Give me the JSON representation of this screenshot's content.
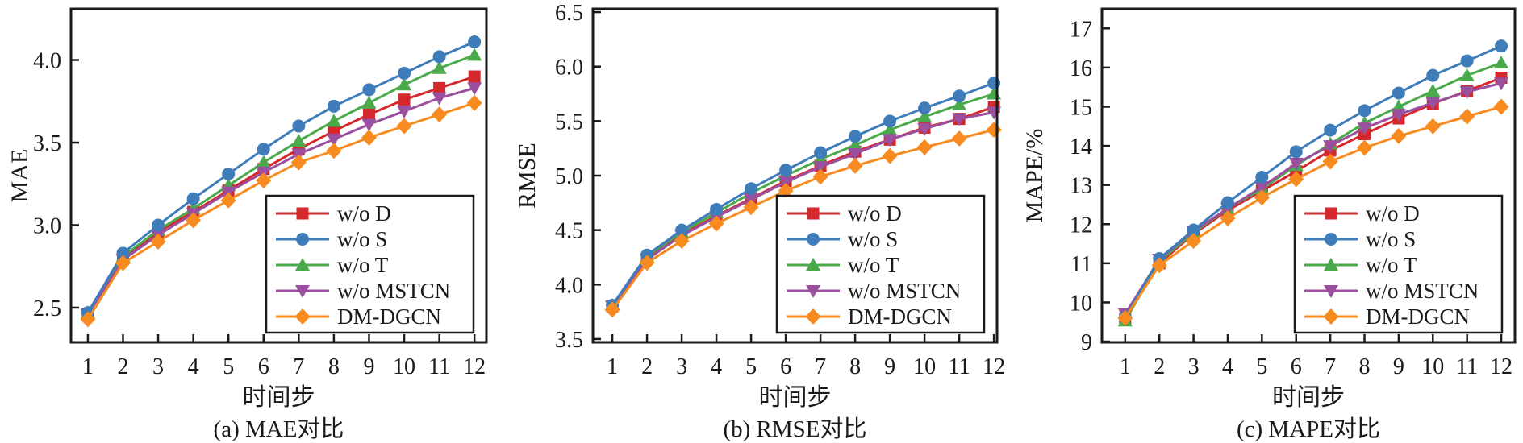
{
  "page": {
    "background": "#ffffff",
    "axis_color": "#1a1a1a",
    "text_color": "#1a1a1a"
  },
  "legend": {
    "position": "lower right",
    "items": [
      {
        "label": "w/o D",
        "color": "#d5282c",
        "marker": "square"
      },
      {
        "label": "w/o S",
        "color": "#3e7cba",
        "marker": "circle"
      },
      {
        "label": "w/o T",
        "color": "#4aa94a",
        "marker": "triangle-up"
      },
      {
        "label": "w/o MSTCN",
        "color": "#9b4f9f",
        "marker": "triangle-down"
      },
      {
        "label": "DM-DGCN",
        "color": "#f78b1f",
        "marker": "diamond"
      }
    ]
  },
  "chart_data": [
    {
      "type": "line",
      "caption": "(a) MAE对比",
      "xlabel": "时间步",
      "ylabel": "MAE",
      "x": [
        1,
        2,
        3,
        4,
        5,
        6,
        7,
        8,
        9,
        10,
        11,
        12
      ],
      "xtick_labels": [
        "1",
        "2",
        "3",
        "4",
        "5",
        "6",
        "7",
        "8",
        "9",
        "10",
        "11",
        "12"
      ],
      "xlim": [
        0.52,
        12.34
      ],
      "ylim": [
        2.29,
        4.31
      ],
      "yticks": [
        2.5,
        3.0,
        3.5,
        4.0
      ],
      "ytick_labels": [
        "2.5",
        "3.0",
        "3.5",
        "4.0"
      ],
      "grid": false,
      "legend_position": "lower right",
      "series": [
        {
          "name": "w/o D",
          "color": "#d5282c",
          "marker": "square",
          "values": [
            2.46,
            2.8,
            2.96,
            3.08,
            3.21,
            3.34,
            3.46,
            3.57,
            3.67,
            3.76,
            3.83,
            3.9
          ]
        },
        {
          "name": "w/o S",
          "color": "#3e7cba",
          "marker": "circle",
          "values": [
            2.47,
            2.83,
            3.0,
            3.16,
            3.31,
            3.46,
            3.6,
            3.72,
            3.82,
            3.92,
            4.02,
            4.11
          ]
        },
        {
          "name": "w/o T",
          "color": "#4aa94a",
          "marker": "triangle-up",
          "values": [
            2.47,
            2.81,
            2.97,
            3.1,
            3.24,
            3.38,
            3.51,
            3.63,
            3.74,
            3.85,
            3.95,
            4.03
          ]
        },
        {
          "name": "w/o MSTCN",
          "color": "#9b4f9f",
          "marker": "triangle-down",
          "values": [
            2.46,
            2.79,
            2.94,
            3.07,
            3.2,
            3.32,
            3.43,
            3.52,
            3.61,
            3.69,
            3.77,
            3.83
          ]
        },
        {
          "name": "DM-DGCN",
          "color": "#f78b1f",
          "marker": "diamond",
          "values": [
            2.43,
            2.77,
            2.9,
            3.03,
            3.15,
            3.27,
            3.38,
            3.45,
            3.53,
            3.6,
            3.67,
            3.74
          ]
        }
      ]
    },
    {
      "type": "line",
      "caption": "(b) RMSE对比",
      "xlabel": "时间步",
      "ylabel": "RMSE",
      "x": [
        1,
        2,
        3,
        4,
        5,
        6,
        7,
        8,
        9,
        10,
        11,
        12
      ],
      "xtick_labels": [
        "1",
        "2",
        "3",
        "4",
        "5",
        "6",
        "7",
        "8",
        "9",
        "10",
        "11",
        "12"
      ],
      "xlim": [
        0.44,
        12.09
      ],
      "ylim": [
        3.47,
        6.53
      ],
      "yticks": [
        3.5,
        4.0,
        4.5,
        5.0,
        5.5,
        6.0,
        6.5
      ],
      "ytick_labels": [
        "3.5",
        "4.0",
        "4.5",
        "5.0",
        "5.5",
        "6.0",
        "6.5"
      ],
      "grid": false,
      "legend_position": "lower right",
      "series": [
        {
          "name": "w/o D",
          "color": "#d5282c",
          "marker": "square",
          "values": [
            3.8,
            4.24,
            4.46,
            4.63,
            4.79,
            4.95,
            5.09,
            5.22,
            5.33,
            5.44,
            5.52,
            5.63
          ]
        },
        {
          "name": "w/o S",
          "color": "#3e7cba",
          "marker": "circle",
          "values": [
            3.81,
            4.27,
            4.5,
            4.69,
            4.88,
            5.05,
            5.21,
            5.36,
            5.5,
            5.62,
            5.73,
            5.85
          ]
        },
        {
          "name": "w/o T",
          "color": "#4aa94a",
          "marker": "triangle-up",
          "values": [
            3.81,
            4.26,
            4.48,
            4.66,
            4.84,
            5.0,
            5.15,
            5.28,
            5.42,
            5.54,
            5.65,
            5.75
          ]
        },
        {
          "name": "w/o MSTCN",
          "color": "#9b4f9f",
          "marker": "triangle-down",
          "values": [
            3.8,
            4.23,
            4.45,
            4.62,
            4.78,
            4.94,
            5.08,
            5.2,
            5.33,
            5.43,
            5.52,
            5.58
          ]
        },
        {
          "name": "DM-DGCN",
          "color": "#f78b1f",
          "marker": "diamond",
          "values": [
            3.77,
            4.2,
            4.4,
            4.56,
            4.71,
            4.86,
            4.99,
            5.09,
            5.18,
            5.26,
            5.34,
            5.42
          ]
        }
      ]
    },
    {
      "type": "line",
      "caption": "(c) MAPE对比",
      "xlabel": "时间步",
      "ylabel": "MAPE/%",
      "x": [
        1,
        2,
        3,
        4,
        5,
        6,
        7,
        8,
        9,
        10,
        11,
        12
      ],
      "xtick_labels": [
        "1",
        "2",
        "3",
        "4",
        "5",
        "6",
        "7",
        "8",
        "9",
        "10",
        "11",
        "12"
      ],
      "xlim": [
        0.32,
        12.4
      ],
      "ylim": [
        8.98,
        17.5
      ],
      "yticks": [
        9,
        10,
        11,
        12,
        13,
        14,
        15,
        16,
        17
      ],
      "ytick_labels": [
        "9",
        "10",
        "11",
        "12",
        "13",
        "14",
        "15",
        "16",
        "17"
      ],
      "grid": false,
      "legend_position": "lower right",
      "series": [
        {
          "name": "w/o D",
          "color": "#d5282c",
          "marker": "square",
          "values": [
            9.58,
            11.0,
            11.75,
            12.35,
            12.85,
            13.35,
            13.88,
            14.3,
            14.7,
            15.08,
            15.4,
            15.74
          ]
        },
        {
          "name": "w/o S",
          "color": "#3e7cba",
          "marker": "circle",
          "values": [
            9.62,
            11.12,
            11.85,
            12.55,
            13.2,
            13.85,
            14.4,
            14.9,
            15.35,
            15.8,
            16.17,
            16.55
          ]
        },
        {
          "name": "w/o T",
          "color": "#4aa94a",
          "marker": "triangle-up",
          "values": [
            9.53,
            11.05,
            11.78,
            12.4,
            12.9,
            13.5,
            14.05,
            14.58,
            15.0,
            15.4,
            15.8,
            16.12
          ]
        },
        {
          "name": "w/o MSTCN",
          "color": "#9b4f9f",
          "marker": "triangle-down",
          "values": [
            9.7,
            11.1,
            11.82,
            12.4,
            12.95,
            13.55,
            14.0,
            14.45,
            14.8,
            15.1,
            15.38,
            15.6
          ]
        },
        {
          "name": "DM-DGCN",
          "color": "#f78b1f",
          "marker": "diamond",
          "values": [
            9.6,
            10.95,
            11.57,
            12.15,
            12.68,
            13.15,
            13.6,
            13.95,
            14.25,
            14.5,
            14.75,
            15.0
          ]
        }
      ]
    }
  ]
}
